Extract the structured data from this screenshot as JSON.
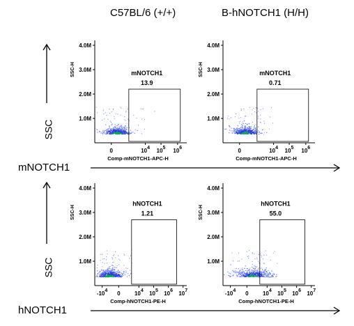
{
  "column_titles": [
    "C57BL/6 (+/+)",
    "B-hNOTCH1 (H/H)"
  ],
  "row_labels": [
    "mNOTCH1",
    "hNOTCH1"
  ],
  "ssc_label": "SSC",
  "colors": {
    "dot_dense": "#00a84f",
    "dot_mid": "#2c3fd6",
    "dot_sparse": "#6a7dff",
    "gate": "#000000",
    "axis": "#000000"
  },
  "chart_data": [
    {
      "type": "scatter",
      "panel": "C57BL/6 (+/+) mNOTCH1",
      "gate_label": "mNOTCH1",
      "gate_percent": "13.9",
      "xlabel": "Comp-mNOTCH1-APC-H",
      "ylabel": "SSC-H",
      "x_ticks": [
        {
          "base": "0",
          "exp": ""
        },
        {
          "base": "10",
          "exp": "4"
        },
        {
          "base": "10",
          "exp": "5"
        },
        {
          "base": "10",
          "exp": "6"
        }
      ],
      "y_ticks": [
        "1.0M",
        "2.0M",
        "3.0M",
        "4.0M"
      ],
      "ylim": [
        0,
        4200000
      ],
      "gate_ylim": [
        0,
        2200000
      ],
      "cluster": "low"
    },
    {
      "type": "scatter",
      "panel": "B-hNOTCH1 (H/H) mNOTCH1",
      "gate_label": "mNOTCH1",
      "gate_percent": "0.71",
      "xlabel": "Comp-mNOTCH1-APC-H",
      "ylabel": "SSC-H",
      "x_ticks": [
        {
          "base": "0",
          "exp": ""
        },
        {
          "base": "10",
          "exp": "4"
        },
        {
          "base": "10",
          "exp": "5"
        },
        {
          "base": "10",
          "exp": "6"
        }
      ],
      "y_ticks": [
        "1.0M",
        "2.0M",
        "3.0M",
        "4.0M"
      ],
      "ylim": [
        0,
        4200000
      ],
      "gate_ylim": [
        0,
        2200000
      ],
      "cluster": "low"
    },
    {
      "type": "scatter",
      "panel": "C57BL/6 (+/+) hNOTCH1",
      "gate_label": "hNOTCH1",
      "gate_percent": "1.21",
      "xlabel": "Comp-hNOTCH1-PE-H",
      "ylabel": "SSC-H",
      "x_ticks": [
        {
          "base": "-10",
          "exp": "4"
        },
        {
          "base": "0",
          "exp": ""
        },
        {
          "base": "10",
          "exp": "4"
        },
        {
          "base": "10",
          "exp": "5"
        },
        {
          "base": "10",
          "exp": "6"
        },
        {
          "base": "10",
          "exp": "7"
        }
      ],
      "y_ticks": [
        "1.0M",
        "2.0M",
        "3.0M",
        "4.0M"
      ],
      "ylim": [
        0,
        4200000
      ],
      "gate_ylim": [
        0,
        2700000
      ],
      "cluster": "low"
    },
    {
      "type": "scatter",
      "panel": "B-hNOTCH1 (H/H) hNOTCH1",
      "gate_label": "hNOTCH1",
      "gate_percent": "55.0",
      "xlabel": "Comp-hNOTCH1-PE-H",
      "ylabel": "SSC-H",
      "x_ticks": [
        {
          "base": "-10",
          "exp": "4"
        },
        {
          "base": "0",
          "exp": ""
        },
        {
          "base": "10",
          "exp": "4"
        },
        {
          "base": "10",
          "exp": "5"
        },
        {
          "base": "10",
          "exp": "6"
        },
        {
          "base": "10",
          "exp": "7"
        }
      ],
      "y_ticks": [
        "1.0M",
        "2.0M",
        "3.0M",
        "4.0M"
      ],
      "ylim": [
        0,
        4200000
      ],
      "gate_ylim": [
        0,
        2700000
      ],
      "cluster": "shifted"
    }
  ]
}
